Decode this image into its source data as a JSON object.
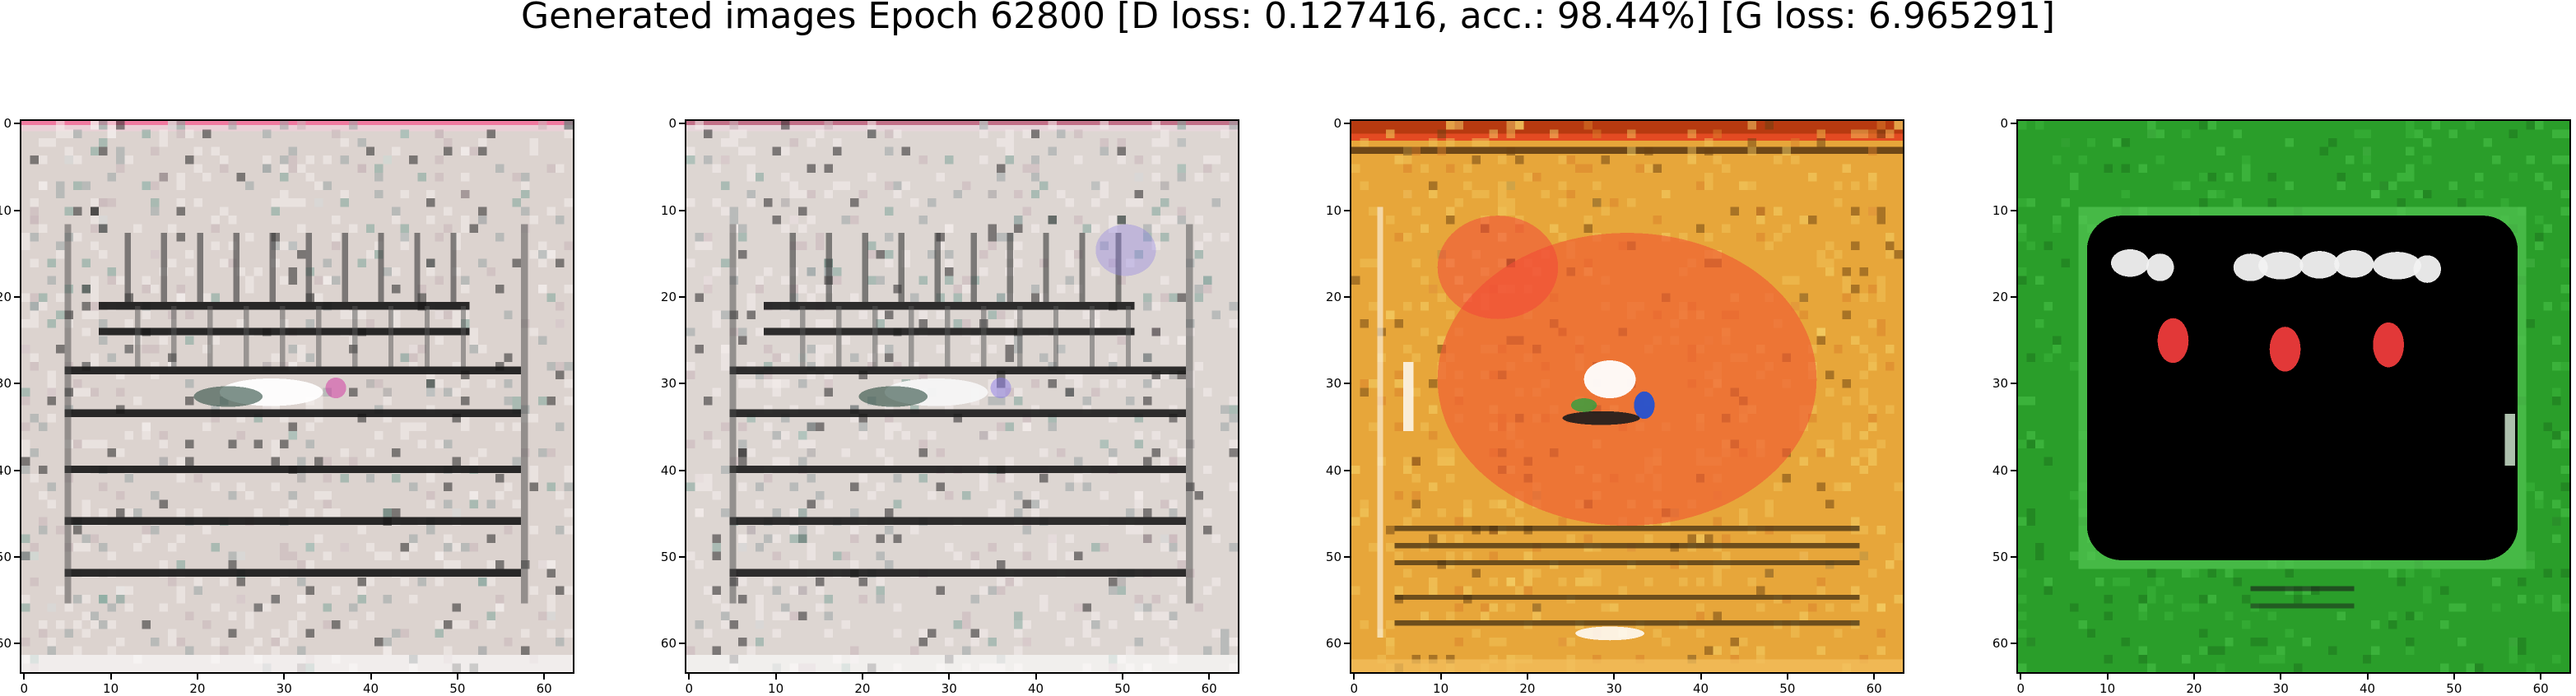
{
  "figure": {
    "title": "Generated images Epoch 62800 [D loss: 0.127416, acc.: 98.44%] [G loss: 6.965291]"
  },
  "axes": {
    "x_ticks": [
      "0",
      "10",
      "20",
      "30",
      "40",
      "50",
      "60"
    ],
    "y_ticks": [
      "0",
      "10",
      "20",
      "30",
      "40",
      "50",
      "60"
    ],
    "range": [
      0,
      63
    ]
  },
  "images": [
    {
      "name": "generated-image-1",
      "palette": {
        "background": "#dcd3cf",
        "stripes": "#141414",
        "accent": "#cf2fa0",
        "frame": "#ead0d6"
      }
    },
    {
      "name": "generated-image-2",
      "palette": {
        "background": "#ddd6d2",
        "stripes": "#1a1a1a",
        "accent": "#8a7ae8",
        "frame": "#e6d6da"
      }
    },
    {
      "name": "generated-image-3",
      "palette": {
        "background": "#e7a63a",
        "field": "#ef5a32",
        "stripes": "#3a2a10",
        "accent": "#1850d8",
        "frame": "#b73a10"
      }
    },
    {
      "name": "generated-image-4",
      "palette": {
        "background": "#2a9e2a",
        "field": "#000000",
        "lights": "#ee3b3b",
        "text": "#f2f2f2",
        "frame": "#53c453"
      }
    }
  ]
}
